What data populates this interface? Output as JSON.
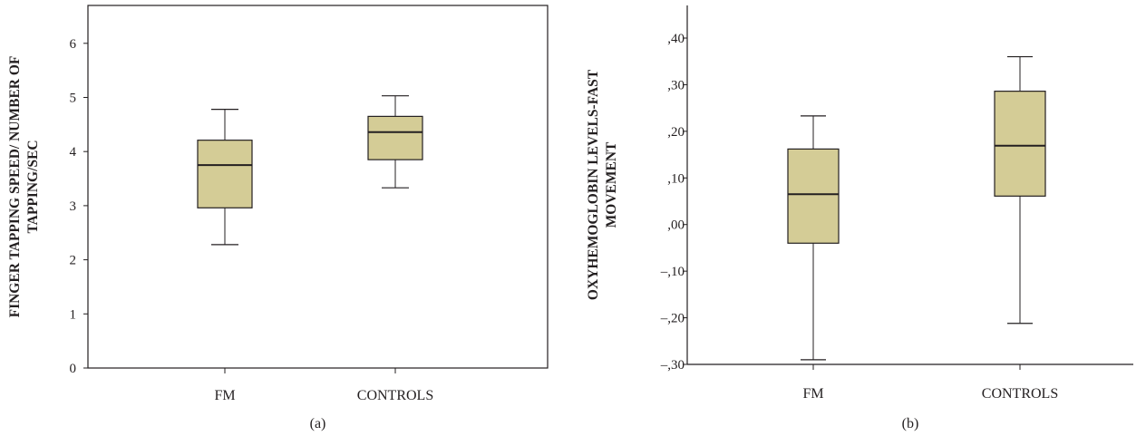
{
  "chart_data": [
    {
      "type": "box",
      "panel_label": "(a)",
      "categories": [
        "FM",
        "CONTROLS"
      ],
      "boxes": [
        {
          "category": "FM",
          "whisker_low": 2.28,
          "q1": 2.96,
          "median": 3.75,
          "q3": 4.21,
          "whisker_high": 4.78
        },
        {
          "category": "CONTROLS",
          "whisker_low": 3.33,
          "q1": 3.85,
          "median": 4.36,
          "q3": 4.65,
          "whisker_high": 5.03
        }
      ],
      "ylabel_lines": [
        "FINGER TAPPING SPEED/ NUMBER OF",
        "TAPPING/SEC"
      ],
      "ylim": [
        0,
        6.7
      ],
      "yticks": [
        0,
        1,
        2,
        3,
        4,
        5,
        6
      ],
      "ytick_labels": [
        "0",
        "1",
        "2",
        "3",
        "4",
        "5",
        "6"
      ],
      "box_color": "#d4cc96",
      "frame": "box"
    },
    {
      "type": "box",
      "panel_label": "(b)",
      "categories": [
        "FM",
        "CONTROLS"
      ],
      "boxes": [
        {
          "category": "FM",
          "whisker_low": -0.29,
          "q1": -0.04,
          "median": 0.065,
          "q3": 0.162,
          "whisker_high": 0.233
        },
        {
          "category": "CONTROLS",
          "whisker_low": -0.212,
          "q1": 0.061,
          "median": 0.169,
          "q3": 0.286,
          "whisker_high": 0.36
        }
      ],
      "ylabel_lines": [
        "OXYHEMOGLOBIN LEVELS-FAST",
        "MOVEMENT"
      ],
      "ylim": [
        -0.3,
        0.47
      ],
      "yticks": [
        -0.3,
        -0.2,
        -0.1,
        0.0,
        0.1,
        0.2,
        0.3,
        0.4
      ],
      "ytick_labels": [
        "–,30",
        "–,20",
        "–,10",
        ",00",
        ",10",
        ",20",
        ",30",
        ",40"
      ],
      "box_color": "#d4cc96",
      "frame": "open"
    }
  ]
}
